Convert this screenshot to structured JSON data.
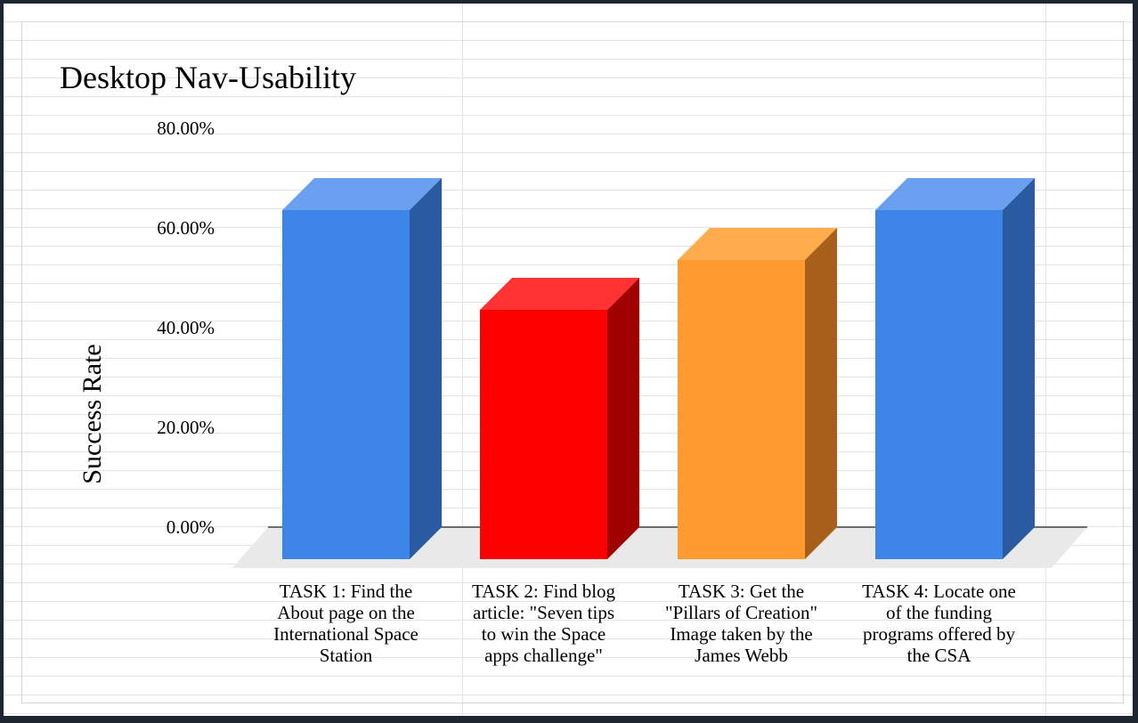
{
  "chart_data": {
    "type": "bar",
    "title": "Desktop Nav-Usability",
    "xlabel": "",
    "ylabel": "Success Rate",
    "ylim": [
      0,
      80
    ],
    "yticks": [
      "0.00%",
      "20.00%",
      "40.00%",
      "60.00%",
      "80.00%"
    ],
    "tick_values": [
      0,
      20,
      40,
      60,
      80
    ],
    "categories": [
      [
        "TASK 1: Find the",
        "About page on the",
        "International Space",
        "Station"
      ],
      [
        "TASK 2: Find blog",
        "article: \"Seven tips",
        "to win the Space",
        "apps challenge\""
      ],
      [
        "TASK 3:  Get the",
        "\"Pillars of Creation\"",
        "Image taken by the",
        "James Webb"
      ],
      [
        "TASK 4: Locate one",
        "of the funding",
        "programs offered by",
        "the CSA"
      ]
    ],
    "values": [
      70,
      50,
      60,
      70
    ],
    "colors": [
      {
        "front": "#3d85e8",
        "top": "#6aa0ef",
        "side": "#2a5aa0"
      },
      {
        "front": "#ff0000",
        "top": "#ff3333",
        "side": "#a00000"
      },
      {
        "front": "#ff9a2e",
        "top": "#ffac4d",
        "side": "#a85f1a"
      },
      {
        "front": "#3d85e8",
        "top": "#6aa0ef",
        "side": "#2a5aa0"
      }
    ],
    "grid": false,
    "style": "3d"
  }
}
